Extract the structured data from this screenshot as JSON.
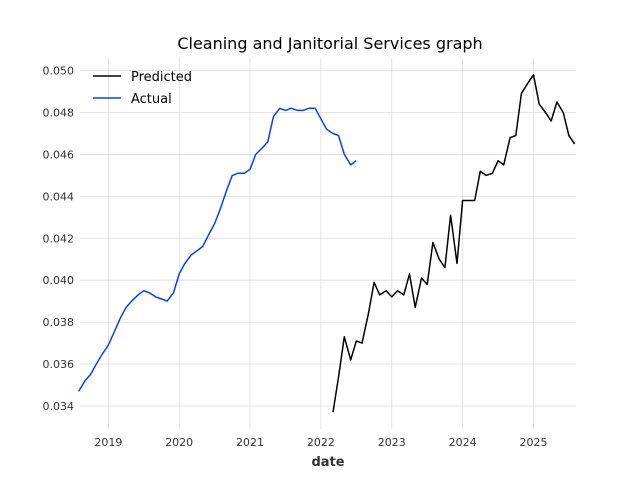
{
  "chart_data": {
    "type": "line",
    "title": "Cleaning and Janitorial Services graph",
    "xlabel": "date",
    "ylabel": "",
    "xlim": [
      2018.6,
      2025.6
    ],
    "ylim": [
      0.0329,
      0.0506
    ],
    "grid": true,
    "legend_position": "top-left",
    "x_ticks": [
      2019,
      2020,
      2021,
      2022,
      2023,
      2024,
      2025
    ],
    "x_tick_labels": [
      "2019",
      "2020",
      "2021",
      "2022",
      "2023",
      "2024",
      "2025"
    ],
    "y_ticks": [
      0.034,
      0.036,
      0.038,
      0.04,
      0.042,
      0.044,
      0.046,
      0.048,
      0.05
    ],
    "y_tick_labels": [
      "0.034",
      "0.036",
      "0.038",
      "0.040",
      "0.042",
      "0.044",
      "0.046",
      "0.048",
      "0.050"
    ],
    "series": [
      {
        "name": "Predicted",
        "color": "#000000",
        "x": [
          2022.17,
          2022.25,
          2022.33,
          2022.42,
          2022.5,
          2022.58,
          2022.67,
          2022.75,
          2022.83,
          2022.92,
          2023.0,
          2023.08,
          2023.17,
          2023.25,
          2023.33,
          2023.42,
          2023.5,
          2023.58,
          2023.67,
          2023.75,
          2023.83,
          2023.92,
          2024.0,
          2024.08,
          2024.17,
          2024.25,
          2024.33,
          2024.42,
          2024.5,
          2024.58,
          2024.67,
          2024.75,
          2024.83,
          2024.92,
          2025.0,
          2025.08,
          2025.17,
          2025.25,
          2025.33,
          2025.42,
          2025.5,
          2025.58
        ],
        "values": [
          0.0337,
          0.0354,
          0.0373,
          0.0362,
          0.0371,
          0.037,
          0.0384,
          0.0399,
          0.0393,
          0.0395,
          0.0392,
          0.0395,
          0.0393,
          0.0403,
          0.0387,
          0.0401,
          0.0398,
          0.0418,
          0.041,
          0.0406,
          0.0431,
          0.0408,
          0.0438,
          0.0438,
          0.0438,
          0.0452,
          0.045,
          0.0451,
          0.0457,
          0.0455,
          0.0468,
          0.0469,
          0.0489,
          0.0494,
          0.0498,
          0.0484,
          0.048,
          0.0476,
          0.0485,
          0.048,
          0.0469,
          0.0465
        ]
      },
      {
        "name": "Actual",
        "color": "#0a3ff0",
        "x": [
          2018.58,
          2018.67,
          2018.75,
          2018.83,
          2018.92,
          2019.0,
          2019.08,
          2019.17,
          2019.25,
          2019.33,
          2019.42,
          2019.5,
          2019.58,
          2019.67,
          2019.75,
          2019.83,
          2019.92,
          2020.0,
          2020.08,
          2020.17,
          2020.25,
          2020.33,
          2020.42,
          2020.5,
          2020.58,
          2020.67,
          2020.75,
          2020.83,
          2020.92,
          2021.0,
          2021.08,
          2021.17,
          2021.25,
          2021.33,
          2021.42,
          2021.5,
          2021.58,
          2021.67,
          2021.75,
          2021.83,
          2021.92,
          2022.0,
          2022.08,
          2022.17,
          2022.25,
          2022.33,
          2022.42,
          2022.5
        ],
        "values": [
          0.0347,
          0.0352,
          0.0355,
          0.036,
          0.0365,
          0.0369,
          0.0375,
          0.0382,
          0.0387,
          0.039,
          0.0393,
          0.0395,
          0.0394,
          0.0392,
          0.0391,
          0.039,
          0.0394,
          0.0403,
          0.0408,
          0.0412,
          0.0414,
          0.0416,
          0.0422,
          0.0427,
          0.0434,
          0.0443,
          0.045,
          0.0451,
          0.0451,
          0.0453,
          0.046,
          0.0463,
          0.0466,
          0.0478,
          0.0482,
          0.0481,
          0.0482,
          0.0481,
          0.0481,
          0.0482,
          0.0482,
          0.0477,
          0.0472,
          0.047,
          0.0469,
          0.046,
          0.0455,
          0.0457
        ]
      }
    ]
  }
}
